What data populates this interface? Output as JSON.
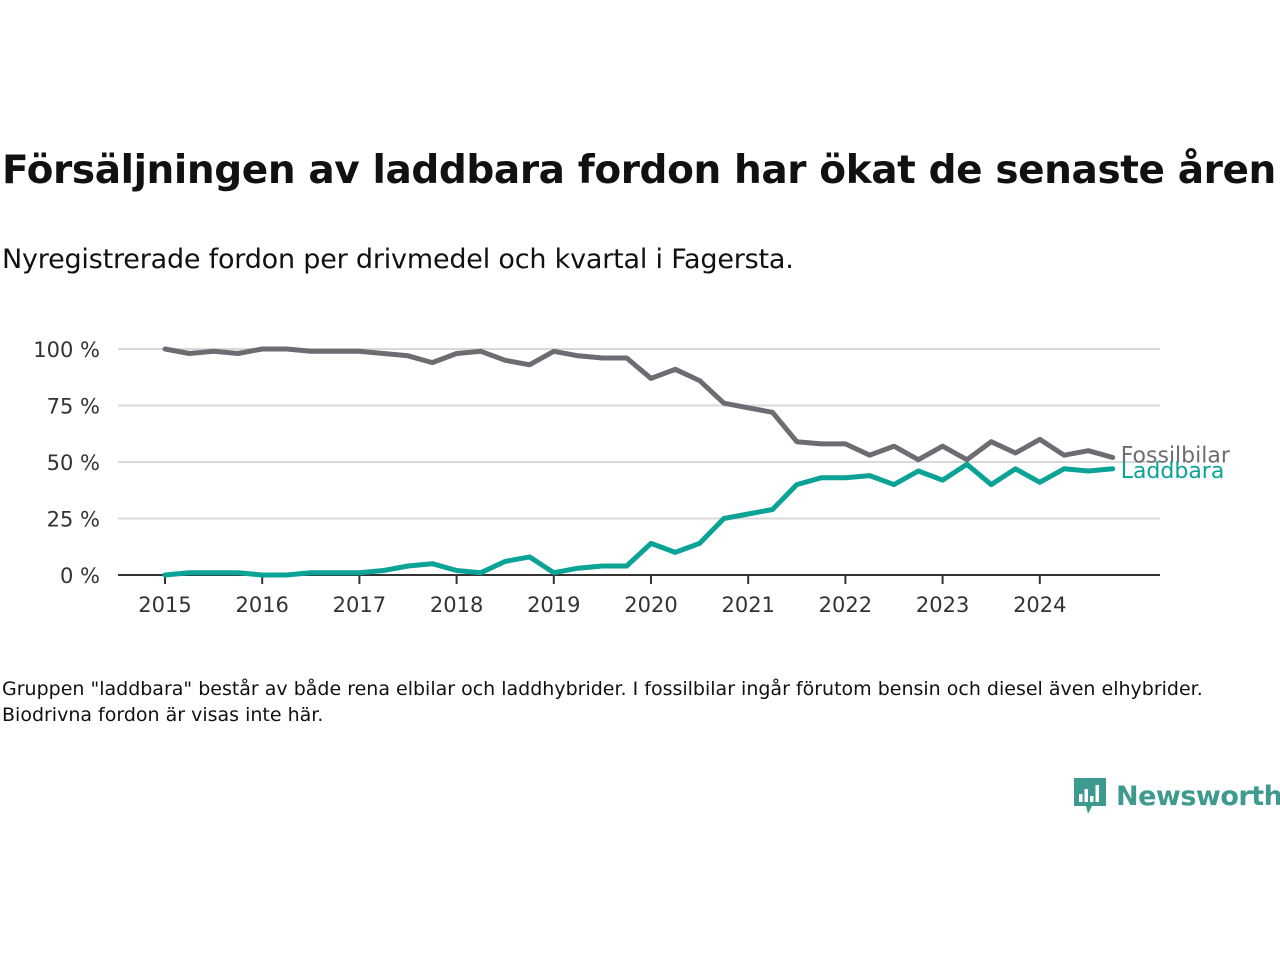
{
  "title": "Försäljningen av laddbara fordon har ökat de senaste åren",
  "subtitle": "Nyregistrerade fordon per drivmedel och kvartal i Fagersta.",
  "footnote": "Gruppen \"laddbara\" består av både rena elbilar och laddhybrider. I fossilbilar ingår förutom bensin och diesel även elhybrider. Biodrivna fordon är visas inte här.",
  "brand": {
    "name": "Newsworthy",
    "icon": "newsworthy-logo-icon",
    "color": "#3e9a8e"
  },
  "chart_data": {
    "type": "line",
    "x_unit": "quarter",
    "x_start": "2015 Q1",
    "x_ticks": [
      "2015",
      "2016",
      "2017",
      "2018",
      "2019",
      "2020",
      "2021",
      "2022",
      "2023",
      "2024"
    ],
    "y_ticks": [
      "0 %",
      "25 %",
      "50 %",
      "75 %",
      "100 %"
    ],
    "ylim": [
      0,
      100
    ],
    "grid": true,
    "legend": "inline-right",
    "series": [
      {
        "name": "Fossilbilar",
        "color": "#6d6c73",
        "values": [
          100,
          98,
          99,
          98,
          100,
          100,
          99,
          99,
          99,
          98,
          97,
          94,
          98,
          99,
          95,
          93,
          99,
          97,
          96,
          96,
          87,
          91,
          86,
          76,
          74,
          72,
          59,
          58,
          58,
          53,
          57,
          51,
          57,
          51,
          59,
          54,
          60,
          53,
          55,
          52
        ]
      },
      {
        "name": "Laddbara",
        "color": "#0aa396",
        "values": [
          0,
          1,
          1,
          1,
          0,
          0,
          1,
          1,
          1,
          2,
          4,
          5,
          2,
          1,
          6,
          8,
          1,
          3,
          4,
          4,
          14,
          10,
          14,
          25,
          27,
          29,
          40,
          43,
          43,
          44,
          40,
          46,
          42,
          49,
          40,
          47,
          41,
          47,
          46,
          47
        ]
      }
    ]
  }
}
